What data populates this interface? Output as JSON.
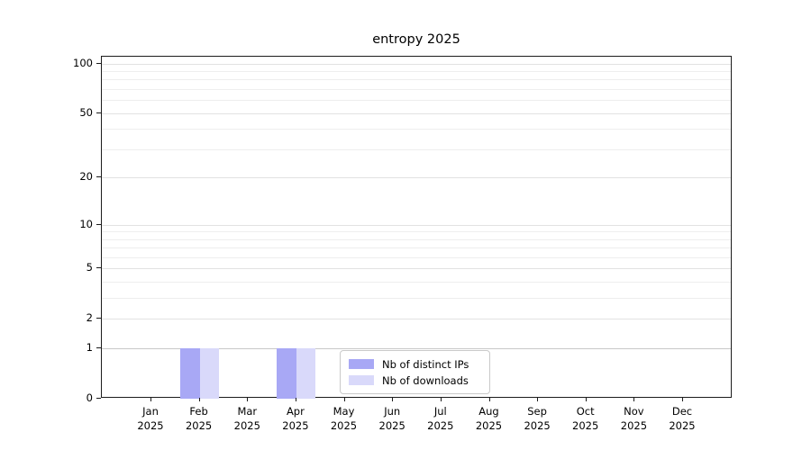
{
  "title": "entropy 2025",
  "chart_data": {
    "type": "bar",
    "title": "entropy 2025",
    "categories": [
      "Jan",
      "Feb",
      "Mar",
      "Apr",
      "May",
      "Jun",
      "Jul",
      "Aug",
      "Sep",
      "Oct",
      "Nov",
      "Dec"
    ],
    "year_label": "2025",
    "series": [
      {
        "name": "Nb of distinct IPs",
        "color": "#a8a8f5",
        "values": [
          0,
          1,
          0,
          1,
          0,
          0,
          0,
          0,
          0,
          0,
          0,
          0
        ]
      },
      {
        "name": "Nb of downloads",
        "color": "#d9d9fa",
        "values": [
          0,
          1,
          0,
          1,
          0,
          0,
          0,
          0,
          0,
          0,
          0,
          0
        ]
      }
    ],
    "yscale": "log1p",
    "ylim": [
      0,
      110
    ],
    "y_major_ticks": [
      0,
      1,
      2,
      5,
      10,
      20,
      50,
      100
    ],
    "y_minor_gridlines": [
      3,
      4,
      6,
      7,
      8,
      9,
      30,
      40,
      60,
      70,
      80,
      90
    ],
    "grid": "horizontal",
    "legend_position": "lower-center-inside"
  },
  "colors": {
    "bar_distinct_ips": "#a8a8f5",
    "bar_downloads": "#d9d9fa",
    "grid_major": "#e2e2e2",
    "grid_minor": "#eeeeee",
    "grid_unit_line": "#c8c8c8",
    "axis_frame": "#1c1c1c",
    "legend_border": "#c9c9c9",
    "text": "#000000",
    "background": "#ffffff"
  }
}
